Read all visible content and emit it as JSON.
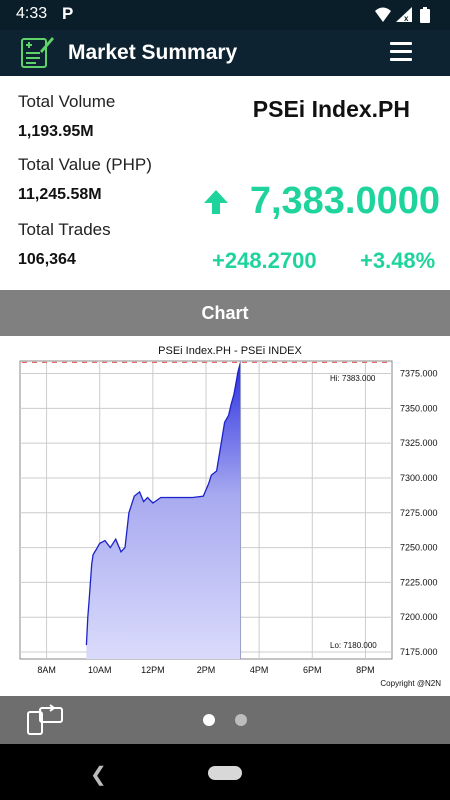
{
  "status": {
    "time": "4:33",
    "app_icon": "P"
  },
  "header": {
    "title": "Market Summary"
  },
  "summary": {
    "total_volume_label": "Total Volume",
    "total_volume": "1,193.95M",
    "total_value_label": "Total Value (PHP)",
    "total_value": "11,245.58M",
    "total_trades_label": "Total Trades",
    "total_trades": "106,364",
    "index_name": "PSEi Index.PH",
    "price": "7,383.0000",
    "change": "+248.2700",
    "change_pct": "+3.48%",
    "accent_color": "#1fd49c"
  },
  "chart_section": {
    "label": "Chart"
  },
  "chart_data": {
    "type": "area",
    "title": "PSEi Index.PH - PSEi INDEX",
    "hi_label": "Hi: 7383.000",
    "lo_label": "Lo: 7180.000",
    "copyright": "Copyright @N2N",
    "x_ticks": [
      "8AM",
      "10AM",
      "12PM",
      "2PM",
      "4PM",
      "6PM",
      "8PM"
    ],
    "y_ticks": [
      "7375.000",
      "7350.000",
      "7325.000",
      "7300.000",
      "7275.000",
      "7250.000",
      "7225.000",
      "7200.000",
      "7175.000"
    ],
    "ylim": [
      7170,
      7384
    ],
    "xlim": [
      7,
      21
    ],
    "hi_value": 7383,
    "series": [
      {
        "x": [
          9.5,
          9.55,
          9.6,
          9.7,
          9.75,
          9.85,
          10.0,
          10.2,
          10.4,
          10.6,
          10.8,
          10.95,
          11.1,
          11.3,
          11.5,
          11.65,
          11.8,
          12.0,
          12.3,
          12.6,
          13.0,
          13.5,
          13.9,
          14.1,
          14.2,
          14.4,
          14.6,
          14.7,
          14.85,
          14.95,
          15.05,
          15.1,
          15.2,
          15.3
        ],
        "y": [
          7180,
          7200,
          7212,
          7238,
          7245,
          7248,
          7253,
          7255,
          7250,
          7256,
          7247,
          7250,
          7275,
          7287,
          7290,
          7283,
          7286,
          7282,
          7286,
          7286,
          7286,
          7286,
          7287,
          7296,
          7302,
          7305,
          7328,
          7340,
          7345,
          7353,
          7360,
          7365,
          7376,
          7383
        ]
      }
    ],
    "grid": true
  },
  "pager": {
    "pages": 2,
    "active": 0
  }
}
